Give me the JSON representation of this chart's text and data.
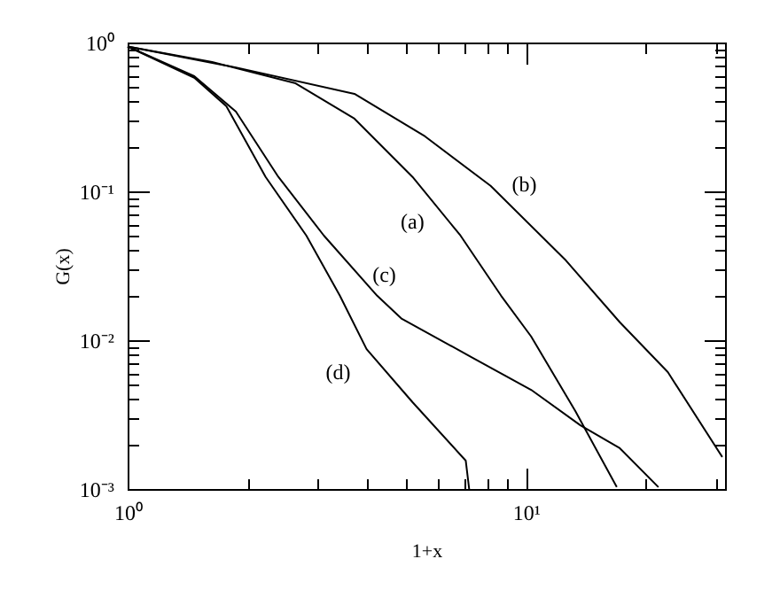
{
  "chart_data": {
    "type": "line",
    "xlabel": "1+x",
    "ylabel": "G(x)",
    "log": "xy",
    "xlim": [
      1,
      31.6
    ],
    "ylim": [
      0.001,
      1
    ],
    "xticks": [
      {
        "value": 1,
        "label": "10⁰"
      },
      {
        "value": 2,
        "label": null
      },
      {
        "value": 3,
        "label": null
      },
      {
        "value": 4,
        "label": null
      },
      {
        "value": 5,
        "label": null
      },
      {
        "value": 6,
        "label": null
      },
      {
        "value": 7,
        "label": null
      },
      {
        "value": 8,
        "label": null
      },
      {
        "value": 9,
        "label": null
      },
      {
        "value": 10,
        "label": "10¹"
      },
      {
        "value": 20,
        "label": null
      },
      {
        "value": 30,
        "label": null
      }
    ],
    "yticks": [
      {
        "value": 0.001,
        "label": "10⁻³"
      },
      {
        "value": 0.002,
        "label": null
      },
      {
        "value": 0.003,
        "label": null
      },
      {
        "value": 0.004,
        "label": null
      },
      {
        "value": 0.005,
        "label": null
      },
      {
        "value": 0.006,
        "label": null
      },
      {
        "value": 0.007,
        "label": null
      },
      {
        "value": 0.008,
        "label": null
      },
      {
        "value": 0.009,
        "label": null
      },
      {
        "value": 0.01,
        "label": "10⁻²"
      },
      {
        "value": 0.02,
        "label": null
      },
      {
        "value": 0.03,
        "label": null
      },
      {
        "value": 0.04,
        "label": null
      },
      {
        "value": 0.05,
        "label": null
      },
      {
        "value": 0.06,
        "label": null
      },
      {
        "value": 0.07,
        "label": null
      },
      {
        "value": 0.08,
        "label": null
      },
      {
        "value": 0.09,
        "label": null
      },
      {
        "value": 0.1,
        "label": "10⁻¹"
      },
      {
        "value": 0.2,
        "label": null
      },
      {
        "value": 0.3,
        "label": null
      },
      {
        "value": 0.4,
        "label": null
      },
      {
        "value": 0.5,
        "label": null
      },
      {
        "value": 0.6,
        "label": null
      },
      {
        "value": 0.7,
        "label": null
      },
      {
        "value": 0.8,
        "label": null
      },
      {
        "value": 0.9,
        "label": null
      },
      {
        "value": 1,
        "label": "10⁰"
      }
    ],
    "series": [
      {
        "name": "(a)",
        "color": "#000000",
        "x": [
          1,
          1.63,
          2.64,
          3.71,
          5.19,
          6.85,
          8.66,
          10.3,
          13.3,
          16.9
        ],
        "values": [
          0.94,
          0.74,
          0.532,
          0.308,
          0.125,
          0.0504,
          0.0199,
          0.0106,
          0.00334,
          0.00103
        ]
      },
      {
        "name": "(b)",
        "color": "#000000",
        "x": [
          1,
          1.87,
          3.71,
          5.58,
          8.15,
          12.6,
          17.2,
          22.7,
          31.1
        ],
        "values": [
          0.94,
          0.68,
          0.452,
          0.234,
          0.109,
          0.0343,
          0.0132,
          0.0061,
          0.00164
        ]
      },
      {
        "name": "(c)",
        "color": "#000000",
        "x": [
          1,
          1.47,
          1.87,
          2.39,
          3.11,
          4.23,
          4.88,
          7.36,
          10.3,
          13.7,
          17.2,
          21.5
        ],
        "values": [
          0.94,
          0.594,
          0.343,
          0.125,
          0.0504,
          0.0199,
          0.0139,
          0.0076,
          0.00464,
          0.00268,
          0.00188,
          0.00103
        ]
      },
      {
        "name": "(d)",
        "color": "#000000",
        "x": [
          1,
          1.47,
          1.77,
          2.22,
          2.81,
          3.41,
          3.98,
          5.19,
          7.06,
          7.2
        ],
        "values": [
          0.94,
          0.58,
          0.373,
          0.125,
          0.0504,
          0.0199,
          0.0087,
          0.00383,
          0.00155,
          0.001
        ]
      }
    ]
  }
}
